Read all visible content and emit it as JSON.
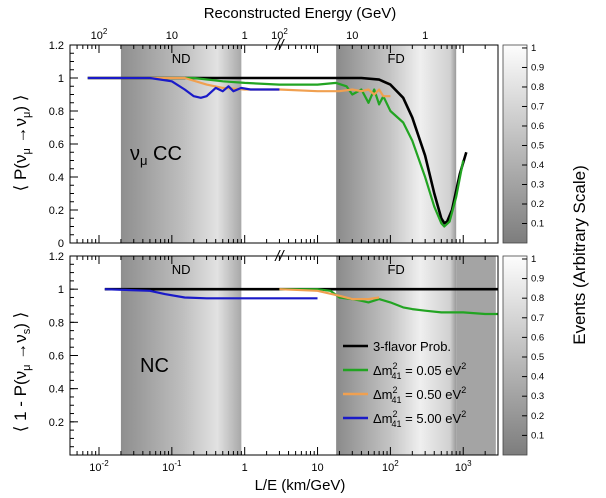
{
  "chart_data": [
    {
      "panel": "top",
      "type": "line",
      "xscale": "log",
      "xlim": [
        0.004,
        3000
      ],
      "ylim": [
        0,
        1.2
      ],
      "yticks": [
        "0",
        "0.2",
        "0.4",
        "0.6",
        "0.8",
        "1",
        "1.2"
      ],
      "ylabel": "⟨ P(ν_μ→ν_μ) ⟩",
      "ylabel_parts": {
        "open": "⟨ P(ν",
        "sub1": "μ",
        "arrow": " →ν",
        "sub2": "μ",
        "close": ") ⟩"
      },
      "annotation": {
        "nu": "ν",
        "sub": "μ",
        "text": " CC"
      },
      "regions": [
        {
          "label": "ND",
          "x": [
            0.02,
            0.9
          ]
        },
        {
          "label": "FD",
          "x": [
            18,
            800
          ]
        }
      ],
      "break_marker": "//",
      "series": [
        {
          "name": "3-flavor Prob.",
          "color": "#000000",
          "points": [
            [
              0.007,
              1.0
            ],
            [
              0.1,
              1.0
            ],
            [
              1,
              1.0
            ],
            [
              10,
              1.0
            ],
            [
              40,
              1.0
            ],
            [
              70,
              0.99
            ],
            [
              100,
              0.96
            ],
            [
              150,
              0.88
            ],
            [
              200,
              0.76
            ],
            [
              300,
              0.53
            ],
            [
              400,
              0.3
            ],
            [
              500,
              0.15
            ],
            [
              550,
              0.12
            ],
            [
              600,
              0.13
            ],
            [
              700,
              0.2
            ],
            [
              900,
              0.42
            ],
            [
              1100,
              0.55
            ]
          ]
        },
        {
          "name": "green",
          "color": "#22a422",
          "points": [
            [
              0.007,
              1.0
            ],
            [
              0.2,
              1.0
            ],
            [
              0.5,
              0.98
            ],
            [
              1,
              0.97
            ],
            [
              3,
              0.96
            ],
            [
              10,
              0.96
            ],
            [
              18,
              0.97
            ],
            [
              25,
              0.95
            ],
            [
              30,
              0.9
            ],
            [
              40,
              0.93
            ],
            [
              50,
              0.85
            ],
            [
              60,
              0.93
            ],
            [
              70,
              0.84
            ],
            [
              80,
              0.89
            ],
            [
              100,
              0.8
            ],
            [
              150,
              0.73
            ],
            [
              200,
              0.62
            ],
            [
              300,
              0.4
            ],
            [
              400,
              0.22
            ],
            [
              500,
              0.12
            ],
            [
              550,
              0.1
            ],
            [
              650,
              0.13
            ],
            [
              800,
              0.28
            ],
            [
              1000,
              0.5
            ]
          ]
        },
        {
          "name": "orange",
          "color": "#f0a050",
          "points": [
            [
              0.007,
              1.0
            ],
            [
              0.15,
              1.0
            ],
            [
              0.3,
              0.96
            ],
            [
              0.5,
              0.94
            ],
            [
              1,
              0.93
            ],
            [
              3,
              0.93
            ],
            [
              10,
              0.92
            ],
            [
              20,
              0.92
            ],
            [
              30,
              0.93
            ],
            [
              40,
              0.92
            ],
            [
              50,
              0.93
            ],
            [
              60,
              0.9
            ],
            [
              70,
              0.93
            ],
            [
              80,
              0.89
            ],
            [
              100,
              0.89
            ]
          ]
        },
        {
          "name": "blue",
          "color": "#1a1ac8",
          "points": [
            [
              0.007,
              1.0
            ],
            [
              0.05,
              1.0
            ],
            [
              0.1,
              0.98
            ],
            [
              0.15,
              0.93
            ],
            [
              0.2,
              0.89
            ],
            [
              0.25,
              0.88
            ],
            [
              0.3,
              0.89
            ],
            [
              0.4,
              0.94
            ],
            [
              0.5,
              0.92
            ],
            [
              0.6,
              0.95
            ],
            [
              0.7,
              0.92
            ],
            [
              0.9,
              0.94
            ],
            [
              1.2,
              0.93
            ],
            [
              3,
              0.93
            ]
          ]
        }
      ]
    },
    {
      "panel": "bottom",
      "type": "line",
      "xscale": "log",
      "xlim": [
        0.004,
        3000
      ],
      "ylim": [
        0,
        1.2
      ],
      "yticks": [
        "0.2",
        "0.4",
        "0.6",
        "0.8",
        "1",
        "1.2"
      ],
      "ylabel": "⟨ 1 - P(ν_μ→ν_s) ⟩",
      "ylabel_parts": {
        "open": "⟨ 1 - P(ν",
        "sub1": "μ",
        "arrow": " →ν",
        "sub2": "s",
        "close": ") ⟩"
      },
      "annotation": {
        "text": "NC"
      },
      "regions": [
        {
          "label": "ND",
          "x": [
            0.02,
            0.9
          ]
        },
        {
          "label": "FD",
          "x": [
            18,
            800
          ]
        }
      ],
      "break_marker": "//",
      "series": [
        {
          "name": "3-flavor Prob.",
          "color": "#000000",
          "points": [
            [
              0.012,
              1.0
            ],
            [
              3000,
              1.0
            ]
          ]
        },
        {
          "name": "green",
          "color": "#22a422",
          "points": [
            [
              3,
              1.0
            ],
            [
              10,
              1.0
            ],
            [
              15,
              0.99
            ],
            [
              20,
              0.95
            ],
            [
              30,
              0.94
            ],
            [
              40,
              0.93
            ],
            [
              50,
              0.92
            ],
            [
              70,
              0.94
            ],
            [
              100,
              0.92
            ],
            [
              150,
              0.89
            ],
            [
              200,
              0.88
            ],
            [
              300,
              0.87
            ],
            [
              500,
              0.86
            ],
            [
              1000,
              0.86
            ],
            [
              2000,
              0.85
            ],
            [
              3000,
              0.85
            ]
          ]
        },
        {
          "name": "orange",
          "color": "#f0a050",
          "points": [
            [
              3,
              1.0
            ],
            [
              10,
              0.99
            ],
            [
              20,
              0.96
            ],
            [
              30,
              0.94
            ],
            [
              50,
              0.94
            ],
            [
              70,
              0.95
            ]
          ]
        },
        {
          "name": "blue",
          "color": "#1a1ac8",
          "points": [
            [
              0.012,
              1.0
            ],
            [
              0.05,
              0.99
            ],
            [
              0.08,
              0.97
            ],
            [
              0.15,
              0.95
            ],
            [
              0.3,
              0.945
            ],
            [
              1,
              0.945
            ],
            [
              3,
              0.945
            ],
            [
              10,
              0.945
            ]
          ]
        }
      ]
    }
  ],
  "x_axis": {
    "label": "L/E (km/GeV)",
    "ticks": [
      {
        "v": 0.01,
        "base": "10",
        "exp": "-2"
      },
      {
        "v": 0.1,
        "base": "10",
        "exp": "-1"
      },
      {
        "v": 1,
        "base": "1",
        "exp": ""
      },
      {
        "v": 10,
        "base": "10",
        "exp": ""
      },
      {
        "v": 100,
        "base": "10",
        "exp": "2"
      },
      {
        "v": 1000,
        "base": "10",
        "exp": "3"
      }
    ]
  },
  "top_axis": {
    "title": "Reconstructed Energy (GeV)",
    "ticks": [
      {
        "v": 0.01,
        "base": "10",
        "exp": "2"
      },
      {
        "v": 0.1,
        "base": "10",
        "exp": ""
      },
      {
        "v": 1,
        "base": "1",
        "exp": ""
      },
      {
        "v": 3,
        "base": "10",
        "exp": "2"
      },
      {
        "v": 30,
        "base": "10",
        "exp": ""
      },
      {
        "v": 300,
        "base": "1",
        "exp": ""
      }
    ]
  },
  "colorbar": {
    "label": "Events (Arbitrary Scale)",
    "ticks": [
      "0.1",
      "0.2",
      "0.3",
      "0.4",
      "0.5",
      "0.6",
      "0.7",
      "0.8",
      "0.9",
      "1"
    ]
  },
  "legend": [
    {
      "text": "3-flavor Prob.",
      "color": "#000000"
    },
    {
      "pre": "Δm",
      "sup": "2",
      "sub": "41",
      "post": " = 0.05 eV",
      "sup2": "2",
      "color": "#22a422"
    },
    {
      "pre": "Δm",
      "sup": "2",
      "sub": "41",
      "post": " = 0.50 eV",
      "sup2": "2",
      "color": "#f0a050"
    },
    {
      "pre": "Δm",
      "sup": "2",
      "sub": "41",
      "post": " = 5.00 eV",
      "sup2": "2",
      "color": "#1a1ac8"
    }
  ]
}
